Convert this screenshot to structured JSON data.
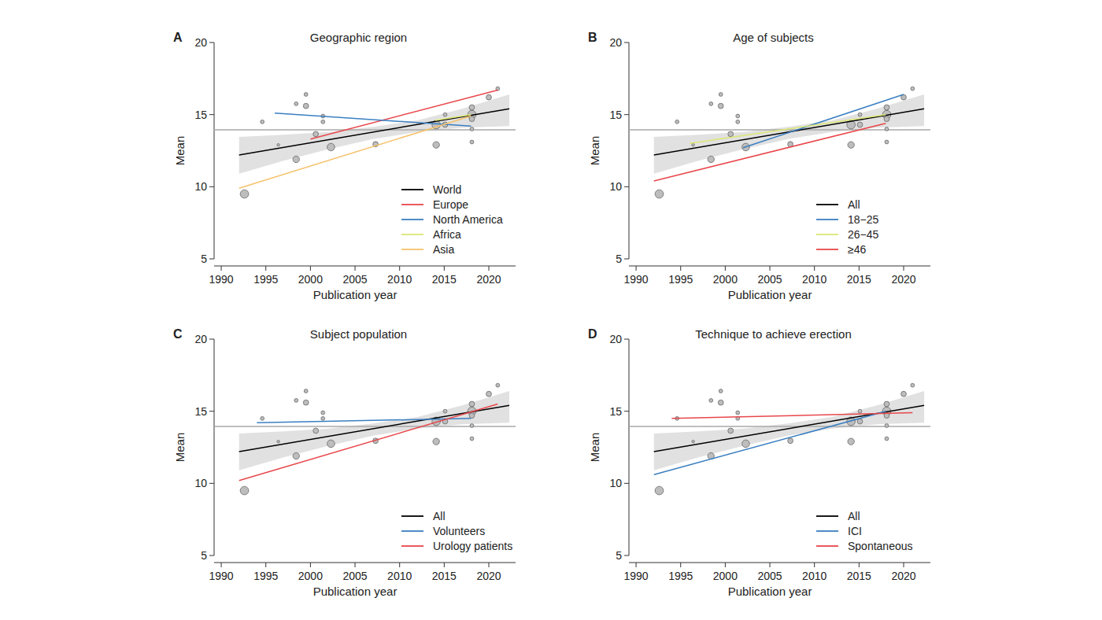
{
  "chart_data": [
    {
      "type": "scatter",
      "panel": "A",
      "title": "Geographic region",
      "x_label": "Publication year",
      "y_label": "Mean",
      "xlim": [
        1989.2,
        2023
      ],
      "ylim": [
        5,
        20
      ],
      "xticks": [
        1990,
        1995,
        2000,
        2005,
        2010,
        2015,
        2020
      ],
      "yticks": [
        5,
        10,
        15,
        20
      ],
      "legend": "bottom-right",
      "points": {
        "color": "#bdbdbd",
        "x": [
          1992.6,
          1994.6,
          1996.4,
          1998.4,
          1998.4,
          1999.5,
          1999.5,
          2000.6,
          2001.4,
          2001.4,
          2002.3,
          2007.3,
          2014.1,
          2014.1,
          2015.1,
          2015.1,
          2018.1,
          2018.1,
          2018.1,
          2018.1,
          2018.1,
          2020.0,
          2021.0
        ],
        "values": [
          9.5,
          14.5,
          12.9,
          11.9,
          15.75,
          16.4,
          15.6,
          13.65,
          14.9,
          14.5,
          12.75,
          12.95,
          12.9,
          14.3,
          14.3,
          15.0,
          15.5,
          15.0,
          14.7,
          14.0,
          13.1,
          16.2,
          16.8
        ],
        "sizes": [
          5,
          1,
          0.5,
          3,
          1,
          1,
          2,
          2,
          1,
          1,
          4,
          2,
          3,
          5,
          2,
          1,
          2,
          5,
          2,
          1,
          1,
          2,
          1
        ]
      },
      "reference_line": {
        "value": 13.95,
        "color": "#a8a8a8"
      },
      "band": {
        "color": "#d9d9d9",
        "x": [
          1992,
          1997,
          2002,
          2007,
          2012,
          2017,
          2022.3
        ],
        "lower": [
          10.9,
          11.8,
          12.6,
          13.3,
          13.8,
          14.1,
          14.2
        ],
        "upper": [
          13.45,
          13.6,
          13.8,
          14.15,
          14.6,
          15.4,
          16.4
        ]
      },
      "series": [
        {
          "name": "World",
          "type": "line",
          "color": "#000000",
          "x": [
            1992,
            2022.3
          ],
          "values": [
            12.2,
            15.4
          ]
        },
        {
          "name": "Europe",
          "type": "line",
          "color": "#e8474b",
          "x": [
            2000,
            2021
          ],
          "values": [
            13.3,
            16.7
          ]
        },
        {
          "name": "North America",
          "type": "line",
          "color": "#3a7fc1",
          "x": [
            1996,
            2018
          ],
          "values": [
            15.1,
            14.2
          ]
        },
        {
          "name": "Africa",
          "type": "line",
          "color": "#dce775",
          "x": [
            2014,
            2018
          ],
          "values": [
            14.6,
            15.0
          ]
        },
        {
          "name": "Asia",
          "type": "line",
          "color": "#f5c26b",
          "x": [
            1992,
            2018
          ],
          "values": [
            9.9,
            14.9
          ]
        }
      ]
    },
    {
      "type": "scatter",
      "panel": "B",
      "title": "Age of subjects",
      "x_label": "Publication year",
      "y_label": "Mean",
      "xlim": [
        1989.2,
        2023
      ],
      "ylim": [
        5,
        20
      ],
      "xticks": [
        1990,
        1995,
        2000,
        2005,
        2010,
        2015,
        2020
      ],
      "yticks": [
        5,
        10,
        15,
        20
      ],
      "legend": "bottom-right",
      "points": {
        "color": "#bdbdbd",
        "x": [
          1992.6,
          1994.6,
          1996.4,
          1998.4,
          1998.4,
          1999.5,
          1999.5,
          2000.6,
          2001.4,
          2001.4,
          2002.3,
          2007.3,
          2014.1,
          2014.1,
          2015.1,
          2015.1,
          2018.1,
          2018.1,
          2018.1,
          2018.1,
          2018.1,
          2020.0,
          2021.0
        ],
        "values": [
          9.5,
          14.5,
          12.9,
          11.9,
          15.75,
          16.4,
          15.6,
          13.65,
          14.9,
          14.5,
          12.75,
          12.95,
          12.9,
          14.3,
          14.3,
          15.0,
          15.5,
          15.0,
          14.7,
          14.0,
          13.1,
          16.2,
          16.8
        ],
        "sizes": [
          5,
          1,
          0.5,
          3,
          1,
          1,
          2,
          2,
          1,
          1,
          4,
          2,
          3,
          5,
          2,
          1,
          2,
          5,
          2,
          1,
          1,
          2,
          1
        ]
      },
      "reference_line": {
        "value": 13.95,
        "color": "#a8a8a8"
      },
      "band": {
        "color": "#d9d9d9",
        "x": [
          1992,
          1997,
          2002,
          2007,
          2012,
          2017,
          2022.3
        ],
        "lower": [
          10.9,
          11.8,
          12.6,
          13.3,
          13.8,
          14.1,
          14.2
        ],
        "upper": [
          13.45,
          13.6,
          13.8,
          14.15,
          14.6,
          15.4,
          16.4
        ]
      },
      "series": [
        {
          "name": "All",
          "type": "line",
          "color": "#000000",
          "x": [
            1992,
            2022.3
          ],
          "values": [
            12.2,
            15.4
          ]
        },
        {
          "name": "18−25",
          "type": "line",
          "color": "#3a7fc1",
          "x": [
            2002,
            2020
          ],
          "values": [
            12.7,
            16.4
          ]
        },
        {
          "name": "26−45",
          "type": "line",
          "color": "#dce775",
          "x": [
            1996,
            2018
          ],
          "values": [
            13.0,
            15.0
          ]
        },
        {
          "name": "≥46",
          "type": "line",
          "color": "#e8474b",
          "x": [
            1992,
            2018
          ],
          "values": [
            10.4,
            14.4
          ]
        }
      ]
    },
    {
      "type": "scatter",
      "panel": "C",
      "title": "Subject population",
      "x_label": "Publication year",
      "y_label": "Mean",
      "xlim": [
        1989.2,
        2023
      ],
      "ylim": [
        5,
        20
      ],
      "xticks": [
        1990,
        1995,
        2000,
        2005,
        2010,
        2015,
        2020
      ],
      "yticks": [
        5,
        10,
        15,
        20
      ],
      "legend": "bottom-right",
      "points": {
        "color": "#bdbdbd",
        "x": [
          1992.6,
          1994.6,
          1996.4,
          1998.4,
          1998.4,
          1999.5,
          1999.5,
          2000.6,
          2001.4,
          2001.4,
          2002.3,
          2007.3,
          2014.1,
          2014.1,
          2015.1,
          2015.1,
          2018.1,
          2018.1,
          2018.1,
          2018.1,
          2018.1,
          2020.0,
          2021.0
        ],
        "values": [
          9.5,
          14.5,
          12.9,
          11.9,
          15.75,
          16.4,
          15.6,
          13.65,
          14.9,
          14.5,
          12.75,
          12.95,
          12.9,
          14.3,
          14.3,
          15.0,
          15.5,
          15.0,
          14.7,
          14.0,
          13.1,
          16.2,
          16.8
        ],
        "sizes": [
          5,
          1,
          0.5,
          3,
          1,
          1,
          2,
          2,
          1,
          1,
          4,
          2,
          3,
          5,
          2,
          1,
          2,
          5,
          2,
          1,
          1,
          2,
          1
        ]
      },
      "reference_line": {
        "value": 13.95,
        "color": "#a8a8a8"
      },
      "band": {
        "color": "#d9d9d9",
        "x": [
          1992,
          1997,
          2002,
          2007,
          2012,
          2017,
          2022.3
        ],
        "lower": [
          10.9,
          11.8,
          12.6,
          13.3,
          13.8,
          14.1,
          14.2
        ],
        "upper": [
          13.45,
          13.6,
          13.8,
          14.15,
          14.6,
          15.4,
          16.4
        ]
      },
      "series": [
        {
          "name": "All",
          "type": "line",
          "color": "#000000",
          "x": [
            1992,
            2022.3
          ],
          "values": [
            12.2,
            15.4
          ]
        },
        {
          "name": "Volunteers",
          "type": "line",
          "color": "#3a7fc1",
          "x": [
            1994,
            2018
          ],
          "values": [
            14.2,
            14.5
          ]
        },
        {
          "name": "Urology patients",
          "type": "line",
          "color": "#e8474b",
          "x": [
            1992,
            2021
          ],
          "values": [
            10.2,
            15.5
          ]
        }
      ]
    },
    {
      "type": "scatter",
      "panel": "D",
      "title": "Technique to achieve erection",
      "x_label": "Publication year",
      "y_label": "Mean",
      "xlim": [
        1989.2,
        2023
      ],
      "ylim": [
        5,
        20
      ],
      "xticks": [
        1990,
        1995,
        2000,
        2005,
        2010,
        2015,
        2020
      ],
      "yticks": [
        5,
        10,
        15,
        20
      ],
      "legend": "bottom-right",
      "points": {
        "color": "#bdbdbd",
        "x": [
          1992.6,
          1994.6,
          1996.4,
          1998.4,
          1998.4,
          1999.5,
          1999.5,
          2000.6,
          2001.4,
          2001.4,
          2002.3,
          2007.3,
          2014.1,
          2014.1,
          2015.1,
          2015.1,
          2018.1,
          2018.1,
          2018.1,
          2018.1,
          2018.1,
          2020.0,
          2021.0
        ],
        "values": [
          9.5,
          14.5,
          12.9,
          11.9,
          15.75,
          16.4,
          15.6,
          13.65,
          14.9,
          14.5,
          12.75,
          12.95,
          12.9,
          14.3,
          14.3,
          15.0,
          15.5,
          15.0,
          14.7,
          14.0,
          13.1,
          16.2,
          16.8
        ],
        "sizes": [
          5,
          1,
          0.5,
          3,
          1,
          1,
          2,
          2,
          1,
          1,
          4,
          2,
          3,
          5,
          2,
          1,
          2,
          5,
          2,
          1,
          1,
          2,
          1
        ]
      },
      "reference_line": {
        "value": 13.95,
        "color": "#a8a8a8"
      },
      "band": {
        "color": "#d9d9d9",
        "x": [
          1992,
          1997,
          2002,
          2007,
          2012,
          2017,
          2022.3
        ],
        "lower": [
          10.9,
          11.8,
          12.6,
          13.3,
          13.8,
          14.1,
          14.2
        ],
        "upper": [
          13.45,
          13.6,
          13.8,
          14.15,
          14.6,
          15.4,
          16.4
        ]
      },
      "series": [
        {
          "name": "All",
          "type": "line",
          "color": "#000000",
          "x": [
            1992,
            2022.3
          ],
          "values": [
            12.2,
            15.4
          ]
        },
        {
          "name": "ICI",
          "type": "line",
          "color": "#3a7fc1",
          "x": [
            1992,
            2018
          ],
          "values": [
            10.6,
            15.0
          ]
        },
        {
          "name": "Spontaneous",
          "type": "line",
          "color": "#e8474b",
          "x": [
            1994,
            2021
          ],
          "values": [
            14.5,
            14.9
          ]
        }
      ]
    }
  ]
}
